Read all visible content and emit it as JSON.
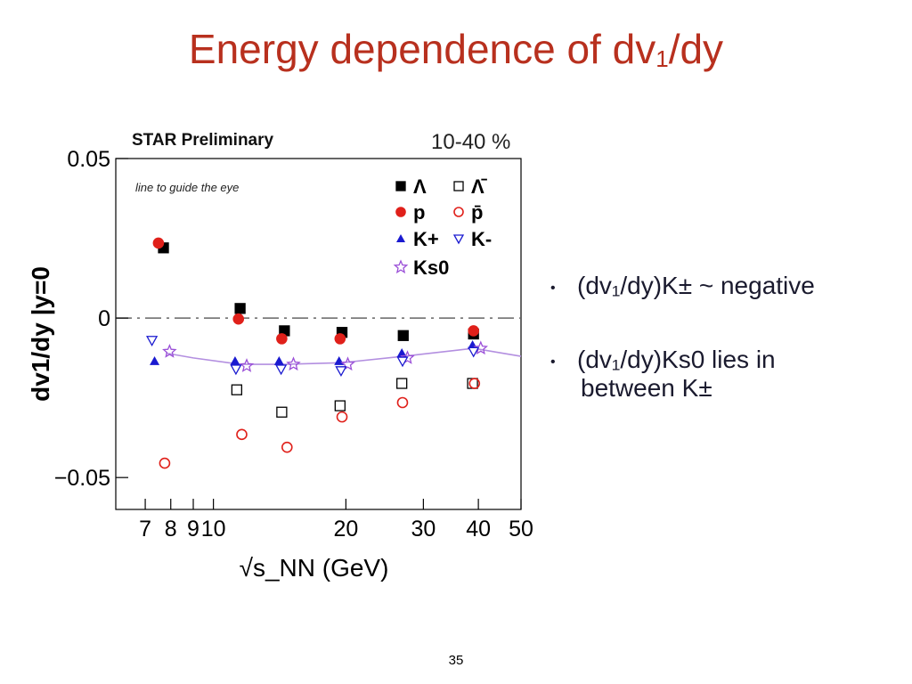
{
  "slide": {
    "title_main": "Energy dependence of dv",
    "title_sub": "1",
    "title_tail": "/dy",
    "page_number": "35"
  },
  "bullets": [
    {
      "text": "(dv₁/dy)K±   ~ negative"
    },
    {
      "text": "(dv₁/dy)Ks0 lies in",
      "text2": "between K±"
    }
  ],
  "chart_data": {
    "type": "scatter",
    "title": "STAR Preliminary",
    "centrality": "10-40 %",
    "annotation": "line to guide the eye",
    "xlabel": "√s_NN (GeV)",
    "ylabel": "dv1/dy |y=0",
    "xscale": "log",
    "xlim": [
      6,
      50
    ],
    "ylim": [
      -0.06,
      0.05
    ],
    "xticks": [
      7,
      8,
      9,
      10,
      20,
      30,
      40,
      50
    ],
    "xtick_labels": [
      "7",
      "8",
      "9",
      "10",
      "20",
      "30",
      "40",
      "50"
    ],
    "yticks": [
      0.05,
      0,
      -0.05
    ],
    "ytick_labels": [
      "0.05",
      "0",
      "−0.05"
    ],
    "series": [
      {
        "name": "Λ",
        "marker": "square-filled",
        "color": "#000000",
        "points": [
          [
            7.7,
            0.022
          ],
          [
            11.5,
            0.003
          ],
          [
            14.5,
            -0.004
          ],
          [
            19.6,
            -0.0045
          ],
          [
            27,
            -0.0055
          ],
          [
            39,
            -0.005
          ]
        ]
      },
      {
        "name": "p",
        "marker": "circle-filled",
        "color": "#e0201a",
        "points": [
          [
            7.5,
            0.0235
          ],
          [
            11.4,
            -0.0003
          ],
          [
            14.3,
            -0.0065
          ],
          [
            19.4,
            -0.0065
          ],
          [
            39,
            -0.004
          ]
        ]
      },
      {
        "name": "K+",
        "marker": "triangle-up-filled",
        "color": "#1a1ad0",
        "points": [
          [
            7.35,
            -0.0135
          ],
          [
            11.2,
            -0.0135
          ],
          [
            14.1,
            -0.0135
          ],
          [
            19.3,
            -0.0135
          ],
          [
            26.8,
            -0.011
          ],
          [
            38.8,
            -0.0085
          ]
        ]
      },
      {
        "name": "Ks0",
        "marker": "star-open",
        "color": "#9b50d8",
        "points": [
          [
            7.95,
            -0.0105
          ],
          [
            11.9,
            -0.015
          ],
          [
            15.2,
            -0.0145
          ],
          [
            20.2,
            -0.0145
          ],
          [
            27.6,
            -0.0125
          ],
          [
            40.5,
            -0.0095
          ]
        ]
      },
      {
        "name": "Λ̄",
        "marker": "square-open",
        "color": "#000000",
        "points": [
          [
            11.3,
            -0.0225
          ],
          [
            14.3,
            -0.0295
          ],
          [
            19.4,
            -0.0275
          ],
          [
            26.8,
            -0.0205
          ],
          [
            38.8,
            -0.0205
          ]
        ]
      },
      {
        "name": "p̄",
        "marker": "circle-open",
        "color": "#e0201a",
        "points": [
          [
            7.75,
            -0.0455
          ],
          [
            11.6,
            -0.0365
          ],
          [
            14.7,
            -0.0405
          ],
          [
            19.6,
            -0.031
          ],
          [
            26.9,
            -0.0265
          ],
          [
            39.2,
            -0.0205
          ]
        ]
      },
      {
        "name": "K-",
        "marker": "triangle-down-open",
        "color": "#1a1ad0",
        "points": [
          [
            7.25,
            -0.007
          ],
          [
            11.25,
            -0.016
          ],
          [
            14.25,
            -0.016
          ],
          [
            19.5,
            -0.0165
          ],
          [
            26.9,
            -0.0135
          ],
          [
            39.0,
            -0.0105
          ]
        ]
      }
    ],
    "guide_line": {
      "series": "Ks0",
      "x": [
        7.8,
        9.0,
        11.5,
        14.5,
        19.6,
        27,
        39,
        50
      ],
      "y": [
        -0.011,
        -0.0125,
        -0.0145,
        -0.0145,
        -0.014,
        -0.012,
        -0.0095,
        -0.012
      ]
    },
    "legend": {
      "position": "top-right",
      "entries": [
        "Λ",
        "Λ̄",
        "p",
        "p̄",
        "K+",
        "K-",
        "Ks0"
      ]
    }
  }
}
